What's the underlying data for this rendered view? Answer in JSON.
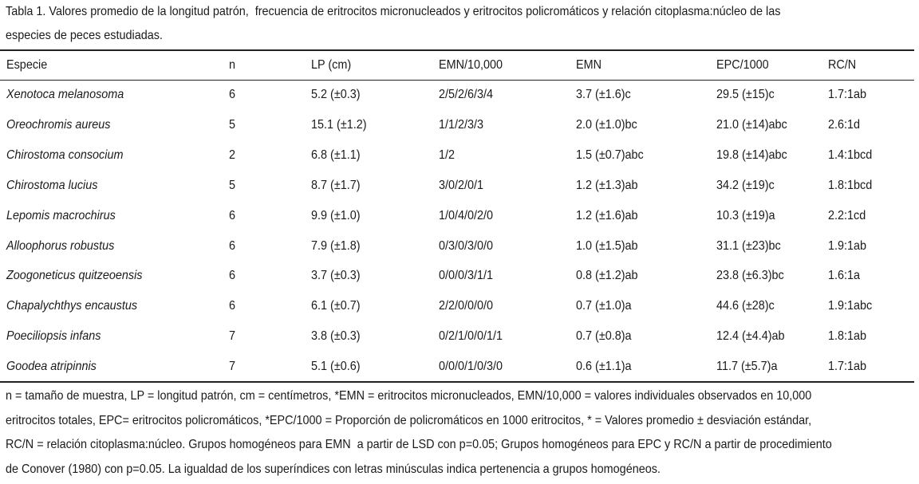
{
  "caption": [
    "Tabla 1. Valores promedio de la longitud patrón,  frecuencia de eritrocitos micronucleados y eritrocitos policromáticos y relación citoplasma:núcleo de las",
    "especies de peces estudiadas."
  ],
  "table": {
    "columns": [
      "Especie",
      "n",
      "LP (cm)",
      "EMN/10,000",
      "EMN",
      "EPC/1000",
      "RC/N"
    ],
    "rows": [
      [
        "Xenotoca melanosoma",
        "6",
        "5.2 (±0.3)",
        "2/5/2/6/3/4",
        "3.7 (±1.6)c",
        "29.5 (±15)c",
        "1.7:1ab"
      ],
      [
        "Oreochromis aureus",
        "5",
        "15.1 (±1.2)",
        "1/1/2/3/3",
        "2.0 (±1.0)bc",
        "21.0 (±14)abc",
        "2.6:1d"
      ],
      [
        "Chirostoma consocium",
        "2",
        "6.8 (±1.1)",
        "1/2",
        "1.5 (±0.7)abc",
        "19.8 (±14)abc",
        "1.4:1bcd"
      ],
      [
        "Chirostoma lucius",
        "5",
        "8.7 (±1.7)",
        "3/0/2/0/1",
        "1.2 (±1.3)ab",
        "34.2 (±19)c",
        "1.8:1bcd"
      ],
      [
        "Lepomis macrochirus",
        "6",
        "9.9 (±1.0)",
        "1/0/4/0/2/0",
        "1.2 (±1.6)ab",
        "10.3 (±19)a",
        "2.2:1cd"
      ],
      [
        "Alloophorus robustus",
        "6",
        "7.9 (±1.8)",
        "0/3/0/3/0/0",
        "1.0 (±1.5)ab",
        "31.1 (±23)bc",
        "1.9:1ab"
      ],
      [
        "Zoogoneticus quitzeoensis",
        "6",
        "3.7 (±0.3)",
        "0/0/0/3/1/1",
        "0.8 (±1.2)ab",
        "23.8 (±6.3)bc",
        "1.6:1a"
      ],
      [
        "Chapalychthys encaustus",
        "6",
        "6.1 (±0.7)",
        "2/2/0/0/0/0",
        "0.7 (±1.0)a",
        "44.6 (±28)c",
        "1.9:1abc"
      ],
      [
        "Poeciliopsis infans",
        "7",
        "3.8 (±0.3)",
        "0/2/1/0/0/1/1",
        "0.7 (±0.8)a",
        "12.4 (±4.4)ab",
        "1.8:1ab"
      ],
      [
        "Goodea atripinnis",
        "7",
        "5.1 (±0.6)",
        "0/0/0/1/0/3/0",
        "0.6 (±1.1)a",
        "11.7 (±5.7)a",
        "1.7:1ab"
      ]
    ]
  },
  "footnote": [
    "n = tamaño de muestra, LP = longitud patrón, cm = centímetros, *EMN = eritrocitos micronucleados, EMN/10,000 = valores individuales observados en 10,000",
    "eritrocitos totales, EPC= eritrocitos policromáticos, *EPC/1000 = Proporción de policromáticos en 1000 eritrocitos, * = Valores promedio ± desviación estándar,",
    "RC/N = relación citoplasma:núcleo. Grupos homogéneos para EMN  a partir de LSD con p=0.05; Grupos homogéneos para EPC y RC/N a partir de procedimiento",
    "de Conover (1980) con p=0.05. La igualdad de los superíndices con letras minúsculas indica pertenencia a grupos homogéneos."
  ]
}
